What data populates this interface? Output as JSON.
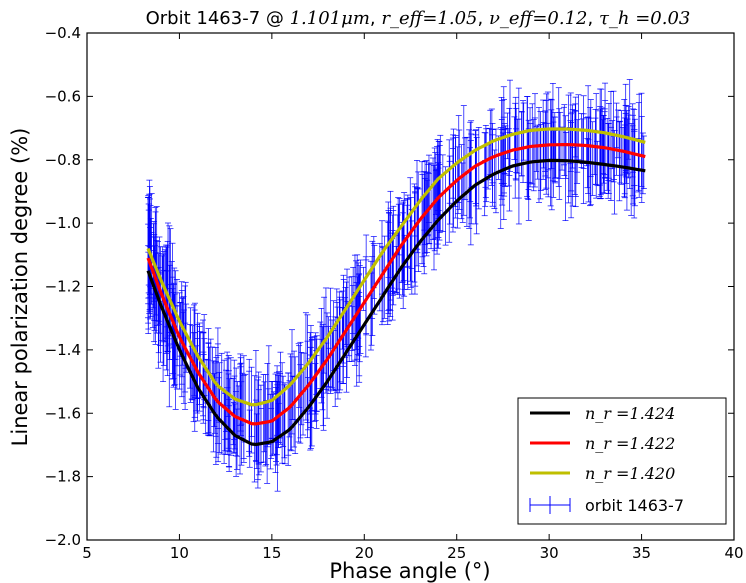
{
  "chart_data": {
    "type": "line",
    "title_parts": {
      "orbit": "Orbit 1463-7 @ ",
      "wavelength": "1.101μm",
      "reff": "r_eff=1.05",
      "veff": "ν_eff=0.12",
      "tau": "τ_h =0.03"
    },
    "xlabel": "Phase angle (°)",
    "ylabel": "Linear polarization degree (%)",
    "xlim": [
      5,
      40
    ],
    "ylim": [
      -2.0,
      -0.4
    ],
    "xticks": [
      5,
      10,
      15,
      20,
      25,
      30,
      35,
      40
    ],
    "yticks": [
      -2.0,
      -1.8,
      -1.6,
      -1.4,
      -1.2,
      -1.0,
      -0.8,
      -0.6,
      -0.4
    ],
    "xtick_labels": [
      "5",
      "10",
      "15",
      "20",
      "25",
      "30",
      "35",
      "40"
    ],
    "ytick_labels": [
      "−2.0",
      "−1.8",
      "−1.6",
      "−1.4",
      "−1.2",
      "−1.0",
      "−0.8",
      "−0.6",
      "−0.4"
    ],
    "legend_position": "lower right",
    "series": [
      {
        "name": "n_r =1.424",
        "color": "#000000",
        "x": [
          8.3,
          9,
          10,
          11,
          12,
          13,
          14,
          15,
          16,
          17,
          18,
          19,
          20,
          21,
          22,
          23,
          24,
          25,
          26,
          27,
          28,
          29,
          30,
          31,
          32,
          33,
          34,
          35.2
        ],
        "y": [
          -1.15,
          -1.26,
          -1.4,
          -1.52,
          -1.61,
          -1.67,
          -1.7,
          -1.69,
          -1.65,
          -1.58,
          -1.5,
          -1.41,
          -1.32,
          -1.23,
          -1.14,
          -1.06,
          -0.99,
          -0.93,
          -0.88,
          -0.845,
          -0.82,
          -0.807,
          -0.802,
          -0.803,
          -0.808,
          -0.815,
          -0.823,
          -0.835
        ]
      },
      {
        "name": "n_r =1.422",
        "color": "#ff0000",
        "x": [
          8.3,
          9,
          10,
          11,
          12,
          13,
          14,
          15,
          16,
          17,
          18,
          19,
          20,
          21,
          22,
          23,
          24,
          25,
          26,
          27,
          28,
          29,
          30,
          31,
          32,
          33,
          34,
          35.2
        ],
        "y": [
          -1.11,
          -1.22,
          -1.36,
          -1.47,
          -1.56,
          -1.61,
          -1.635,
          -1.625,
          -1.58,
          -1.51,
          -1.43,
          -1.34,
          -1.25,
          -1.16,
          -1.07,
          -0.99,
          -0.92,
          -0.865,
          -0.82,
          -0.79,
          -0.77,
          -0.758,
          -0.753,
          -0.752,
          -0.755,
          -0.762,
          -0.773,
          -0.79
        ]
      },
      {
        "name": "n_r =1.420",
        "color": "#bfbf00",
        "x": [
          8.3,
          9,
          10,
          11,
          12,
          13,
          14,
          15,
          16,
          17,
          18,
          19,
          20,
          21,
          22,
          23,
          24,
          25,
          26,
          27,
          28,
          29,
          30,
          31,
          32,
          33,
          34,
          35.2
        ],
        "y": [
          -1.08,
          -1.18,
          -1.31,
          -1.42,
          -1.51,
          -1.555,
          -1.575,
          -1.56,
          -1.51,
          -1.44,
          -1.36,
          -1.27,
          -1.18,
          -1.09,
          -1.01,
          -0.93,
          -0.86,
          -0.81,
          -0.77,
          -0.74,
          -0.72,
          -0.707,
          -0.703,
          -0.703,
          -0.707,
          -0.715,
          -0.727,
          -0.745
        ]
      },
      {
        "name": "orbit 1463-7",
        "color": "#0000ff",
        "kind": "errorbar",
        "x_range": [
          8.3,
          35.2
        ],
        "y_err_typical": 0.12,
        "note_values": "dense noisy observations following the model curves"
      }
    ],
    "legend_labels": {
      "l1": "n_r =1.424",
      "l2": "n_r =1.422",
      "l3": "n_r =1.420",
      "l4": "orbit 1463-7"
    }
  }
}
